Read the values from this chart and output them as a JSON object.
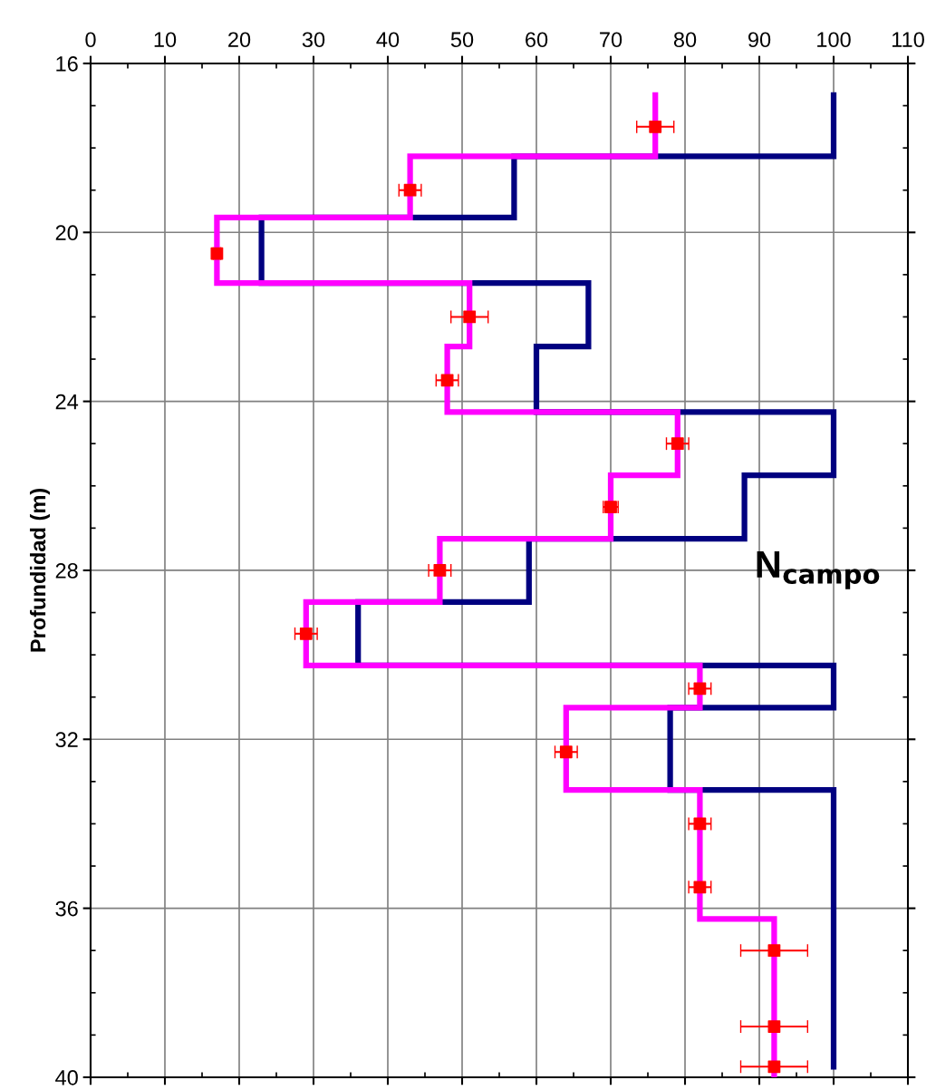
{
  "chart_data": {
    "type": "line",
    "ylabel": "Profundidad (m)",
    "annotations": [
      "N$_{campo}$"
    ],
    "xlim": [
      0,
      110
    ],
    "xticks": [
      0,
      10,
      20,
      30,
      40,
      50,
      60,
      70,
      80,
      90,
      100,
      110
    ],
    "ylim": [
      40,
      16
    ],
    "yticks": [
      16,
      20,
      24,
      28,
      32,
      36,
      40
    ],
    "grid": true,
    "legend": false,
    "marker": "none",
    "line_style": "solid",
    "series": [
      {
        "color": "#000080",
        "x": [
          100,
          100,
          57,
          57,
          23,
          23,
          67,
          67,
          60,
          60,
          100,
          100,
          88,
          88,
          59,
          59,
          36,
          36,
          100,
          100,
          78,
          78,
          100,
          100
        ],
        "values": [
          16.75,
          18.2,
          18.2,
          19.65,
          19.65,
          21.2,
          21.2,
          22.7,
          22.7,
          24.25,
          24.25,
          25.75,
          25.75,
          27.25,
          27.25,
          28.75,
          28.75,
          30.25,
          30.25,
          31.25,
          31.25,
          33.2,
          33.2,
          39.75
        ]
      },
      {
        "color": "#ff00ff",
        "x": [
          76,
          76,
          43,
          43,
          17,
          17,
          51,
          51,
          48,
          48,
          79,
          79,
          70,
          70,
          47,
          47,
          29,
          29,
          82,
          82,
          64,
          64,
          82,
          82,
          92,
          92
        ],
        "values": [
          16.75,
          18.2,
          18.2,
          19.65,
          19.65,
          21.2,
          21.2,
          22.7,
          22.7,
          24.25,
          24.25,
          25.75,
          25.75,
          27.25,
          27.25,
          28.75,
          28.75,
          30.25,
          30.25,
          31.25,
          31.25,
          33.2,
          33.2,
          36.25,
          36.25,
          40
        ]
      },
      {
        "type": "scatter",
        "color": "#ff0000",
        "marker": "square",
        "x": [
          76,
          43,
          17,
          51,
          48,
          79,
          70,
          47,
          29,
          82,
          64,
          82,
          82,
          92,
          92,
          92
        ],
        "values": [
          17.5,
          19,
          20.5,
          22,
          23.5,
          25,
          26.5,
          28,
          29.5,
          30.8,
          32.3,
          34,
          35.5,
          37,
          38.8,
          39.75
        ],
        "xerrors": [
          2.5,
          1.5,
          0.5,
          2.5,
          1.5,
          1.5,
          1,
          1.5,
          1.5,
          1.5,
          1.5,
          1.5,
          1.5,
          4.5,
          4.5,
          4.5
        ]
      }
    ]
  }
}
